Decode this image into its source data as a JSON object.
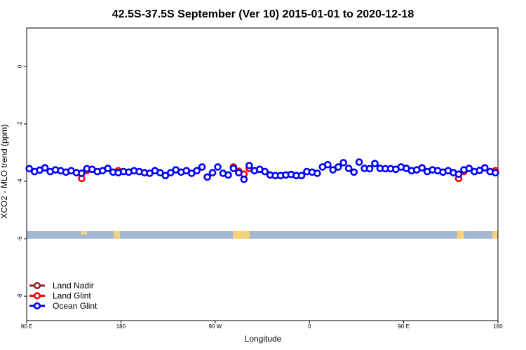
{
  "chart_data": {
    "type": "scatter",
    "title": "42.5S-37.5S September (Ver 10)   2015-01-01 to 2020-12-18",
    "x_label": "Longitude",
    "y_label": "XCO2 - MLO trend (ppm)",
    "xlim": [
      90,
      540
    ],
    "xticks": [
      {
        "value": 90,
        "label": "90 E"
      },
      {
        "value": 180,
        "label": "180"
      },
      {
        "value": 270,
        "label": "90 W"
      },
      {
        "value": 360,
        "label": "0"
      },
      {
        "value": 450,
        "label": "90 E"
      },
      {
        "value": 540,
        "label": "180"
      }
    ],
    "ylim": [
      -8.85,
      1.34
    ],
    "yticks": [
      0,
      -2,
      -4,
      -6,
      -8
    ],
    "legend": "bottom-left",
    "x": [
      92.5,
      97.5,
      102.5,
      107.5,
      112.5,
      117.5,
      122.5,
      127.5,
      132.5,
      137.5,
      142.5,
      147.5,
      152.5,
      157.5,
      162.5,
      167.5,
      172.5,
      177.5,
      182.5,
      187.5,
      192.5,
      197.5,
      202.5,
      207.5,
      212.5,
      217.5,
      222.5,
      227.5,
      232.5,
      237.5,
      242.5,
      247.5,
      252.5,
      257.5,
      262.5,
      267.5,
      272.5,
      277.5,
      282.5,
      287.5,
      292.5,
      297.5,
      302.5,
      307.5,
      312.5,
      317.5,
      322.5,
      327.5,
      332.5,
      337.5,
      342.5,
      347.5,
      352.5,
      357.5,
      362.5,
      367.5,
      372.5,
      377.5,
      382.5,
      387.5,
      392.5,
      397.5,
      402.5,
      407.5,
      412.5,
      417.5,
      422.5,
      427.5,
      432.5,
      437.5,
      442.5,
      447.5,
      452.5,
      457.5,
      462.5,
      467.5,
      472.5,
      477.5,
      482.5,
      487.5,
      492.5,
      497.5,
      502.5,
      507.5,
      512.5,
      517.5,
      522.5,
      527.5,
      532.5,
      537.5
    ],
    "series": [
      {
        "name": "Land Nadir",
        "color": "#8b2323",
        "values": [
          null,
          null,
          null,
          null,
          null,
          null,
          null,
          null,
          null,
          null,
          null,
          null,
          null,
          null,
          null,
          null,
          null,
          null,
          null,
          null,
          null,
          null,
          null,
          null,
          null,
          null,
          null,
          null,
          null,
          null,
          null,
          null,
          null,
          null,
          null,
          null,
          null,
          null,
          null,
          null,
          null,
          null,
          null,
          null,
          null,
          null,
          null,
          null,
          null,
          null,
          null,
          null,
          null,
          null,
          null,
          null,
          null,
          null,
          null,
          null,
          null,
          null,
          null,
          null,
          null,
          null,
          null,
          null,
          null,
          null,
          null,
          null,
          null,
          null,
          null,
          null,
          null,
          null,
          null,
          null,
          null,
          null,
          null,
          null,
          null,
          null,
          null,
          null,
          null,
          null
        ]
      },
      {
        "name": "Land Glint",
        "color": "#ff0000",
        "values": [
          null,
          null,
          null,
          null,
          null,
          null,
          null,
          null,
          null,
          null,
          -3.9,
          -3.62,
          null,
          null,
          null,
          null,
          null,
          -3.63,
          null,
          null,
          null,
          null,
          null,
          null,
          null,
          null,
          null,
          null,
          null,
          null,
          null,
          null,
          null,
          null,
          null,
          null,
          null,
          null,
          null,
          -3.5,
          -3.65,
          -3.75,
          -3.55,
          null,
          null,
          null,
          null,
          null,
          null,
          null,
          null,
          null,
          null,
          null,
          null,
          null,
          null,
          null,
          null,
          null,
          null,
          null,
          null,
          null,
          null,
          null,
          null,
          null,
          null,
          null,
          null,
          null,
          null,
          null,
          null,
          null,
          null,
          null,
          null,
          null,
          null,
          null,
          -3.9,
          -3.66,
          null,
          null,
          null,
          null,
          null,
          -3.63
        ]
      },
      {
        "name": "Ocean Glint",
        "color": "#0000ff",
        "values": [
          -3.56,
          -3.66,
          -3.61,
          -3.53,
          -3.66,
          -3.6,
          -3.63,
          -3.68,
          -3.63,
          -3.7,
          -3.72,
          -3.56,
          -3.58,
          -3.66,
          -3.63,
          -3.55,
          -3.68,
          -3.7,
          -3.66,
          -3.68,
          -3.63,
          -3.66,
          -3.7,
          -3.72,
          -3.63,
          -3.7,
          -3.8,
          -3.7,
          -3.6,
          -3.68,
          -3.63,
          -3.72,
          -3.63,
          -3.5,
          -3.85,
          -3.7,
          -3.5,
          -3.72,
          -3.78,
          -3.55,
          -3.7,
          -3.93,
          -3.45,
          -3.63,
          -3.58,
          -3.66,
          -3.78,
          -3.8,
          -3.8,
          -3.78,
          -3.76,
          -3.8,
          -3.8,
          -3.66,
          -3.68,
          -3.72,
          -3.5,
          -3.42,
          -3.6,
          -3.5,
          -3.35,
          -3.55,
          -3.68,
          -3.33,
          -3.55,
          -3.56,
          -3.38,
          -3.55,
          -3.56,
          -3.56,
          -3.58,
          -3.5,
          -3.55,
          -3.63,
          -3.6,
          -3.53,
          -3.66,
          -3.6,
          -3.63,
          -3.68,
          -3.63,
          -3.7,
          -3.75,
          -3.6,
          -3.55,
          -3.66,
          -3.62,
          -3.53,
          -3.66,
          -3.7
        ]
      }
    ]
  }
}
